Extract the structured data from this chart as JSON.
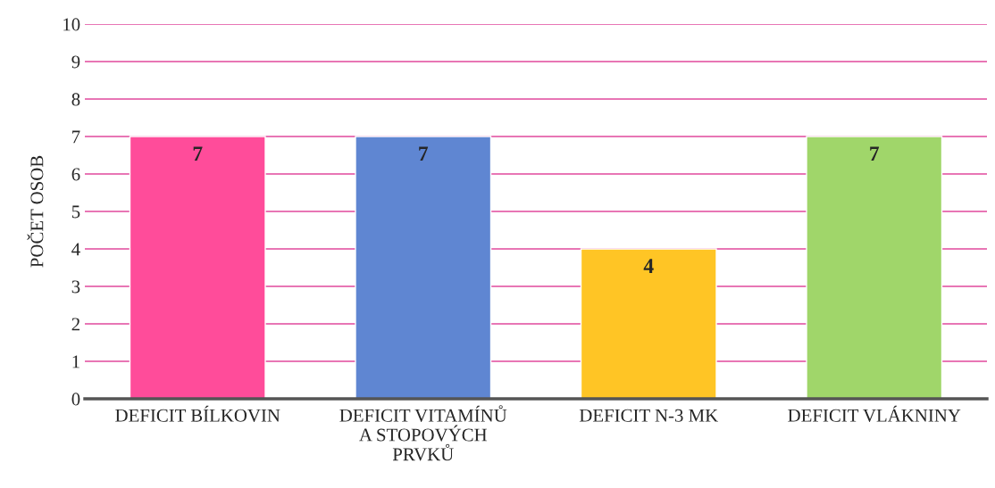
{
  "chart_data": {
    "type": "bar",
    "ylabel": "POČET OSOB",
    "categories": [
      "DEFICIT BÍLKOVIN",
      "DEFICIT VITAMÍNŮ\nA STOPOVÝCH\nPRVKŮ",
      "DEFICIT N-3 MK",
      "DEFICIT VLÁKNINY"
    ],
    "values": [
      7,
      7,
      4,
      7
    ],
    "colors": [
      "#ff4c9a",
      "#5f86d2",
      "#ffc525",
      "#a0d66a"
    ],
    "ylim": [
      0,
      10
    ],
    "yticks": [
      0,
      1,
      2,
      3,
      4,
      5,
      6,
      7,
      8,
      9,
      10
    ],
    "grid": "y",
    "data_labels": true,
    "legend": false
  }
}
